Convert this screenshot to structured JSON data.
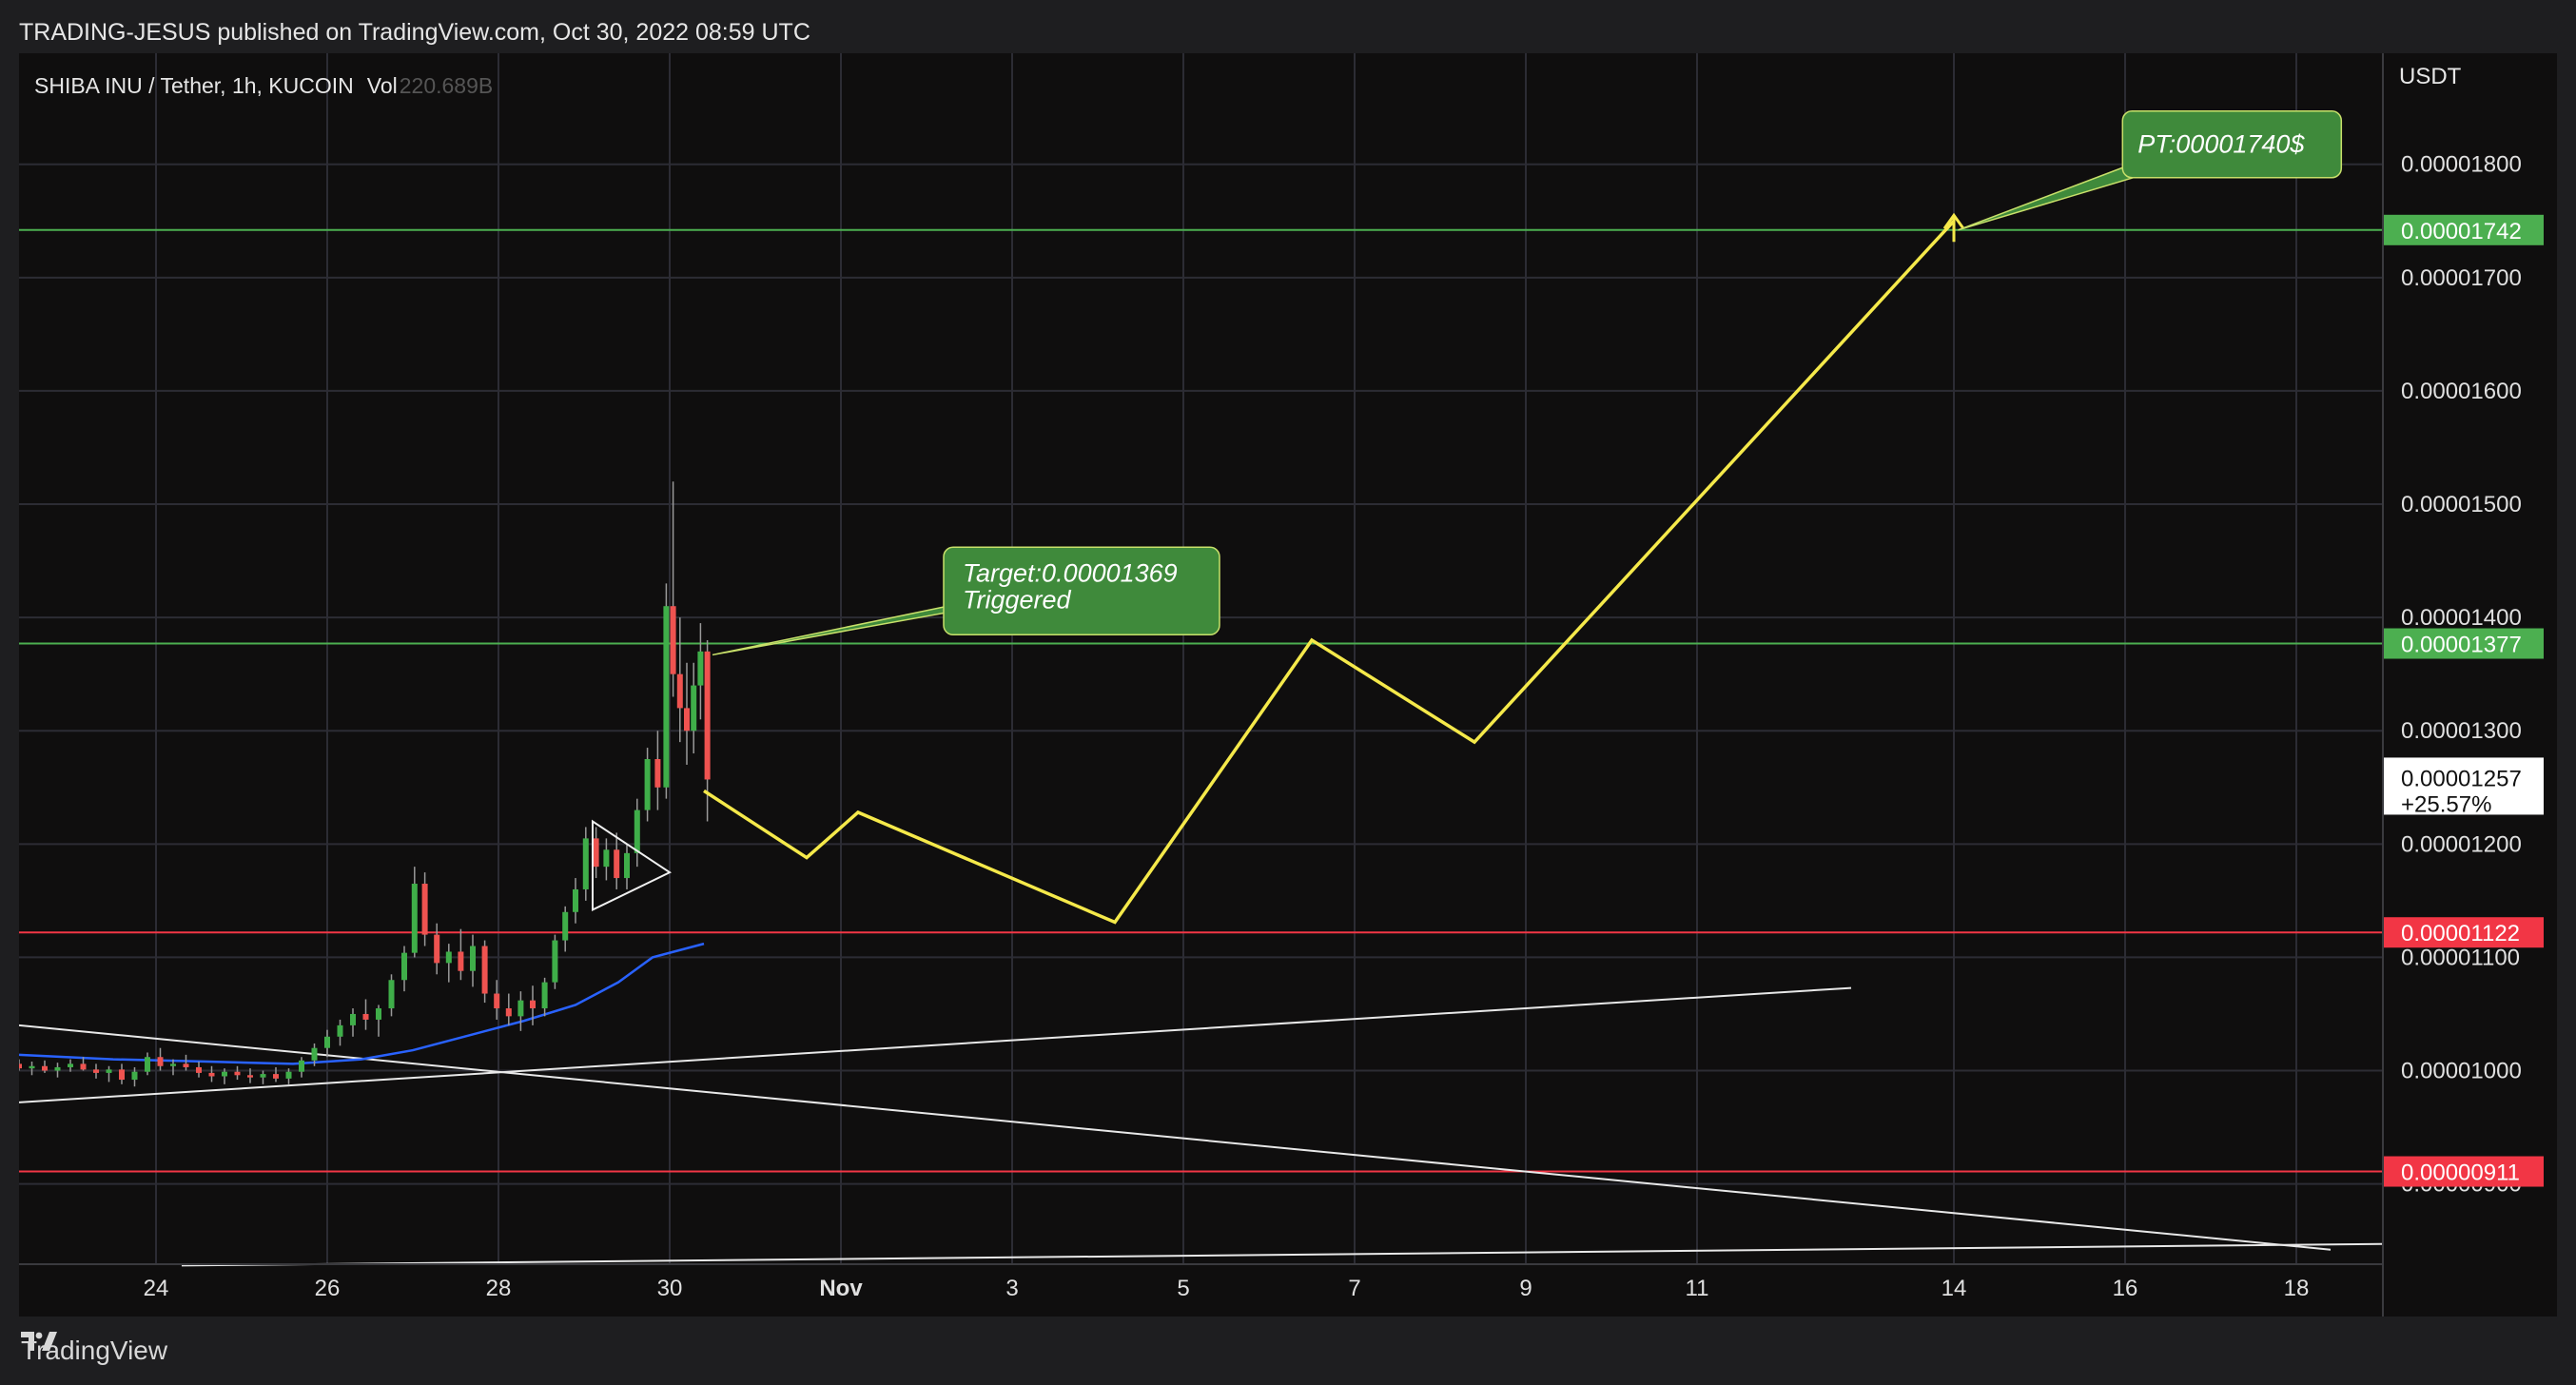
{
  "header": {
    "attribution": "TRADING-JESUS published on TradingView.com, Oct 30, 2022 08:59 UTC"
  },
  "footer": {
    "brand": "TradingView",
    "brand_icon": "tradingview-logo-icon"
  },
  "chart_data": {
    "type": "line",
    "title": "SHIBA INU / Tether, 1h, KUCOIN",
    "volume_label": "Vol",
    "volume_value": "220.689B",
    "currency_label": "USDT",
    "price_axis": {
      "ylim": [
        8.3e-06,
        1.898e-05
      ],
      "ticks": [
        "0.00000900",
        "0.00001000",
        "0.00001100",
        "0.00001200",
        "0.00001300",
        "0.00001400",
        "0.00001500",
        "0.00001600",
        "0.00001700",
        "0.00001800"
      ]
    },
    "time_axis": {
      "ticks": [
        {
          "label": "24",
          "day": 24
        },
        {
          "label": "26",
          "day": 26
        },
        {
          "label": "28",
          "day": 28
        },
        {
          "label": "30",
          "day": 30
        },
        {
          "label": "Nov",
          "day": 32,
          "bold": true
        },
        {
          "label": "3",
          "day": 34
        },
        {
          "label": "5",
          "day": 36
        },
        {
          "label": "7",
          "day": 38
        },
        {
          "label": "9",
          "day": 40
        },
        {
          "label": "11",
          "day": 42
        },
        {
          "label": "14",
          "day": 45
        },
        {
          "label": "16",
          "day": 47
        },
        {
          "label": "18",
          "day": 49
        }
      ],
      "xlim": [
        22.4,
        50.0
      ]
    },
    "horizontal_levels": [
      {
        "value": 1.742e-05,
        "label": "0.00001742",
        "color": "#4caf50"
      },
      {
        "value": 1.377e-05,
        "label": "0.00001377",
        "color": "#4caf50"
      },
      {
        "value": 1.122e-05,
        "label": "0.00001122",
        "color": "#f23645"
      },
      {
        "value": 9.11e-06,
        "label": "0.00000911",
        "color": "#f23645"
      }
    ],
    "last_price": {
      "value": 1.257e-05,
      "label": "0.00001257",
      "change": "+25.57%"
    },
    "annotations": [
      {
        "text_line1": "Target:0.00001369",
        "text_line2": "Triggered",
        "color": "#3f8a3b"
      },
      {
        "text_line1": "PT:00001740$",
        "text_line2": "",
        "color": "#3f8a3b"
      }
    ],
    "projection_path": [
      {
        "day": 30.4,
        "value": 1.247e-05
      },
      {
        "day": 31.6,
        "value": 1.188e-05
      },
      {
        "day": 32.2,
        "value": 1.228e-05
      },
      {
        "day": 35.2,
        "value": 1.131e-05
      },
      {
        "day": 37.5,
        "value": 1.38e-05
      },
      {
        "day": 39.4,
        "value": 1.29e-05
      },
      {
        "day": 45.0,
        "value": 1.75e-05
      }
    ],
    "trendlines": [
      {
        "from": {
          "day": 22.4,
          "value": 1.04e-05
        },
        "to": {
          "day": 49.4,
          "value": 8.42e-06
        }
      },
      {
        "from": {
          "day": 22.4,
          "value": 9.72e-06
        },
        "to": {
          "day": 43.8,
          "value": 1.073e-05
        }
      },
      {
        "from": {
          "day": 24.3,
          "value": 8.28e-06
        },
        "to": {
          "day": 50.0,
          "value": 8.47e-06
        }
      }
    ],
    "moving_average": {
      "color": "#2962ff",
      "points": [
        {
          "day": 22.4,
          "value": 1.014e-05
        },
        {
          "day": 23.5,
          "value": 1.01e-05
        },
        {
          "day": 24.6,
          "value": 1.008e-05
        },
        {
          "day": 25.6,
          "value": 1.006e-05
        },
        {
          "day": 26.4,
          "value": 1.01e-05
        },
        {
          "day": 27.0,
          "value": 1.018e-05
        },
        {
          "day": 27.6,
          "value": 1.03e-05
        },
        {
          "day": 28.3,
          "value": 1.044e-05
        },
        {
          "day": 28.9,
          "value": 1.058e-05
        },
        {
          "day": 29.4,
          "value": 1.078e-05
        },
        {
          "day": 29.8,
          "value": 1.1e-05
        },
        {
          "day": 30.4,
          "value": 1.112e-05
        }
      ]
    },
    "triangle": [
      {
        "day": 29.1,
        "value": 1.22e-05
      },
      {
        "day": 29.1,
        "value": 1.142e-05
      },
      {
        "day": 30.0,
        "value": 1.175e-05
      }
    ],
    "candles": [
      [
        22.4,
        1.006e-05,
        1.01e-05,
        1e-05,
        1.002e-05
      ],
      [
        22.55,
        1.002e-05,
        1.008e-05,
        9.96e-06,
        1.004e-05
      ],
      [
        22.7,
        1.004e-05,
        1.009e-05,
        9.98e-06,
        1e-05
      ],
      [
        22.85,
        1e-05,
        1.007e-05,
        9.94e-06,
        1.003e-05
      ],
      [
        23.0,
        1.003e-05,
        1.01e-05,
        9.99e-06,
        1.006e-05
      ],
      [
        23.15,
        1.006e-05,
        1.012e-05,
        1e-05,
        1.001e-05
      ],
      [
        23.3,
        1.001e-05,
        1.006e-05,
        9.93e-06,
        9.98e-06
      ],
      [
        23.45,
        9.98e-06,
        1.004e-05,
        9.9e-06,
        1.001e-05
      ],
      [
        23.6,
        1.001e-05,
        1.006e-05,
        9.88e-06,
        9.92e-06
      ],
      [
        23.75,
        9.92e-06,
        1.003e-05,
        9.86e-06,
        9.99e-06
      ],
      [
        23.9,
        9.99e-06,
        1.016e-05,
        9.96e-06,
        1.012e-05
      ],
      [
        24.05,
        1.012e-05,
        1.02e-05,
        1e-05,
        1.004e-05
      ],
      [
        24.2,
        1.004e-05,
        1.01e-05,
        9.96e-06,
        1.006e-05
      ],
      [
        24.35,
        1.006e-05,
        1.014e-05,
        1e-05,
        1.003e-05
      ],
      [
        24.5,
        1.003e-05,
        1.008e-05,
        9.94e-06,
        9.98e-06
      ],
      [
        24.65,
        9.98e-06,
        1.004e-05,
        9.9e-06,
        9.95e-06
      ],
      [
        24.8,
        9.95e-06,
        1.002e-05,
        9.88e-06,
        9.99e-06
      ],
      [
        24.95,
        9.99e-06,
        1.004e-05,
        9.92e-06,
        9.96e-06
      ],
      [
        25.1,
        9.96e-06,
        1.002e-05,
        9.89e-06,
        9.94e-06
      ],
      [
        25.25,
        9.94e-06,
        1e-05,
        9.88e-06,
        9.97e-06
      ],
      [
        25.4,
        9.97e-06,
        1.003e-05,
        9.9e-06,
        9.93e-06
      ],
      [
        25.55,
        9.93e-06,
        1.002e-05,
        9.88e-06,
        9.99e-06
      ],
      [
        25.7,
        9.99e-06,
        1.012e-05,
        9.94e-06,
        1.009e-05
      ],
      [
        25.85,
        1.009e-05,
        1.024e-05,
        1.004e-05,
        1.02e-05
      ],
      [
        26.0,
        1.02e-05,
        1.036e-05,
        1.012e-05,
        1.03e-05
      ],
      [
        26.15,
        1.03e-05,
        1.045e-05,
        1.022e-05,
        1.04e-05
      ],
      [
        26.3,
        1.04e-05,
        1.055e-05,
        1.03e-05,
        1.05e-05
      ],
      [
        26.45,
        1.05e-05,
        1.063e-05,
        1.036e-05,
        1.045e-05
      ],
      [
        26.6,
        1.045e-05,
        1.058e-05,
        1.03e-05,
        1.055e-05
      ],
      [
        26.75,
        1.055e-05,
        1.085e-05,
        1.048e-05,
        1.08e-05
      ],
      [
        26.9,
        1.08e-05,
        1.11e-05,
        1.07e-05,
        1.104e-05
      ],
      [
        27.02,
        1.104e-05,
        1.18e-05,
        1.1e-05,
        1.165e-05
      ],
      [
        27.14,
        1.165e-05,
        1.175e-05,
        1.11e-05,
        1.12e-05
      ],
      [
        27.28,
        1.12e-05,
        1.13e-05,
        1.085e-05,
        1.095e-05
      ],
      [
        27.42,
        1.095e-05,
        1.112e-05,
        1.078e-05,
        1.105e-05
      ],
      [
        27.56,
        1.105e-05,
        1.125e-05,
        1.08e-05,
        1.088e-05
      ],
      [
        27.7,
        1.088e-05,
        1.12e-05,
        1.074e-05,
        1.11e-05
      ],
      [
        27.84,
        1.11e-05,
        1.115e-05,
        1.06e-05,
        1.068e-05
      ],
      [
        27.98,
        1.068e-05,
        1.08e-05,
        1.045e-05,
        1.055e-05
      ],
      [
        28.12,
        1.055e-05,
        1.068e-05,
        1.04e-05,
        1.048e-05
      ],
      [
        28.26,
        1.048e-05,
        1.07e-05,
        1.035e-05,
        1.062e-05
      ],
      [
        28.4,
        1.062e-05,
        1.075e-05,
        1.04e-05,
        1.055e-05
      ],
      [
        28.54,
        1.055e-05,
        1.082e-05,
        1.048e-05,
        1.078e-05
      ],
      [
        28.66,
        1.078e-05,
        1.12e-05,
        1.072e-05,
        1.115e-05
      ],
      [
        28.78,
        1.115e-05,
        1.145e-05,
        1.105e-05,
        1.14e-05
      ],
      [
        28.9,
        1.14e-05,
        1.17e-05,
        1.13e-05,
        1.16e-05
      ],
      [
        29.02,
        1.16e-05,
        1.215e-05,
        1.15e-05,
        1.205e-05
      ],
      [
        29.14,
        1.205e-05,
        1.215e-05,
        1.17e-05,
        1.18e-05
      ],
      [
        29.26,
        1.18e-05,
        1.205e-05,
        1.168e-05,
        1.195e-05
      ],
      [
        29.38,
        1.195e-05,
        1.21e-05,
        1.16e-05,
        1.17e-05
      ],
      [
        29.5,
        1.17e-05,
        1.2e-05,
        1.16e-05,
        1.192e-05
      ],
      [
        29.62,
        1.192e-05,
        1.24e-05,
        1.18e-05,
        1.23e-05
      ],
      [
        29.74,
        1.23e-05,
        1.285e-05,
        1.22e-05,
        1.275e-05
      ],
      [
        29.86,
        1.275e-05,
        1.3e-05,
        1.23e-05,
        1.25e-05
      ],
      [
        29.96,
        1.25e-05,
        1.43e-05,
        1.24e-05,
        1.41e-05
      ],
      [
        30.04,
        1.41e-05,
        1.52e-05,
        1.33e-05,
        1.35e-05
      ],
      [
        30.12,
        1.35e-05,
        1.4e-05,
        1.29e-05,
        1.32e-05
      ],
      [
        30.2,
        1.32e-05,
        1.36e-05,
        1.27e-05,
        1.3e-05
      ],
      [
        30.28,
        1.3e-05,
        1.36e-05,
        1.28e-05,
        1.34e-05
      ],
      [
        30.36,
        1.34e-05,
        1.395e-05,
        1.31e-05,
        1.37e-05
      ],
      [
        30.44,
        1.37e-05,
        1.38e-05,
        1.22e-05,
        1.257e-05
      ]
    ]
  }
}
